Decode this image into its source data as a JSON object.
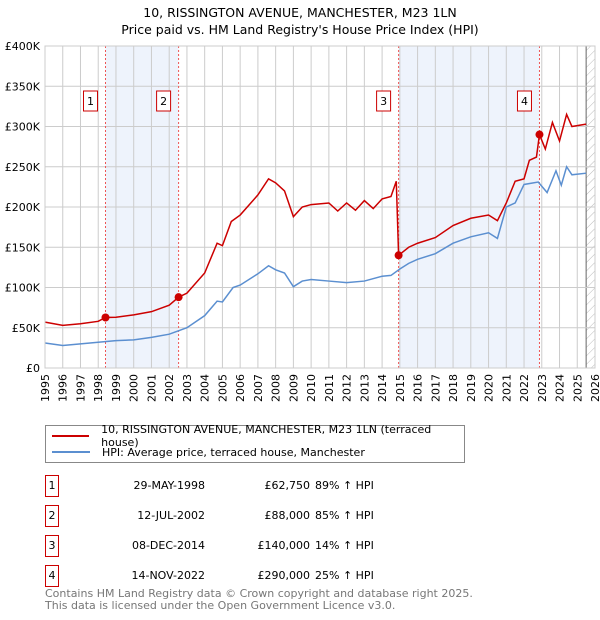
{
  "chart_data": {
    "type": "line",
    "title": "10, RISSINGTON AVENUE, MANCHESTER, M23 1LN",
    "subtitle": "Price paid vs. HM Land Registry's House Price Index (HPI)",
    "xlim": [
      1995,
      2026
    ],
    "ylim": [
      0,
      400000
    ],
    "y_ticks": [
      "£0",
      "£50K",
      "£100K",
      "£150K",
      "£200K",
      "£250K",
      "£300K",
      "£350K",
      "£400K"
    ],
    "x_ticks": [
      "1995",
      "1996",
      "1997",
      "1998",
      "1999",
      "2000",
      "2001",
      "2002",
      "2003",
      "2004",
      "2005",
      "2006",
      "2007",
      "2008",
      "2009",
      "2010",
      "2011",
      "2012",
      "2013",
      "2014",
      "2015",
      "2016",
      "2017",
      "2018",
      "2019",
      "2020",
      "2021",
      "2022",
      "2023",
      "2024",
      "2025",
      "2026"
    ],
    "colors": {
      "property": "#cc0000",
      "hpi": "#5b8fd0",
      "shade": "#eef3fc"
    },
    "series": [
      {
        "name": "10, RISSINGTON AVENUE, MANCHESTER, M23 1LN (terraced house)",
        "x": [
          1995,
          1996,
          1997,
          1998,
          1998.41,
          1999,
          2000,
          2001,
          2002,
          2002.53,
          2003,
          2004,
          2004.7,
          2005,
          2005.5,
          2006,
          2007,
          2007.6,
          2008,
          2008.5,
          2009,
          2009.5,
          2010,
          2011,
          2011.5,
          2012,
          2012.5,
          2013,
          2013.5,
          2014,
          2014.5,
          2014.8,
          2014.93,
          2015.5,
          2016,
          2017,
          2018,
          2019,
          2020,
          2020.5,
          2021,
          2021.5,
          2022,
          2022.3,
          2022.7,
          2022.87,
          2023.2,
          2023.6,
          2024,
          2024.4,
          2024.7,
          2025.5
        ],
        "values": [
          57000,
          53000,
          55000,
          58000,
          62750,
          63000,
          66000,
          70000,
          78000,
          88000,
          93000,
          118000,
          155000,
          152000,
          182000,
          190000,
          215000,
          235000,
          230000,
          220000,
          188000,
          200000,
          203000,
          205000,
          195000,
          205000,
          196000,
          208000,
          198000,
          210000,
          213000,
          232000,
          140000,
          150000,
          155000,
          162000,
          177000,
          186000,
          190000,
          183000,
          205000,
          232000,
          235000,
          258000,
          262000,
          290000,
          272000,
          305000,
          282000,
          315000,
          300000,
          303000
        ]
      },
      {
        "name": "HPI: Average price, terraced house, Manchester",
        "x": [
          1995,
          1996,
          1997,
          1998,
          1999,
          2000,
          2001,
          2002,
          2003,
          2004,
          2004.7,
          2005,
          2005.6,
          2006,
          2007,
          2007.6,
          2008,
          2008.5,
          2009,
          2009.5,
          2010,
          2011,
          2012,
          2013,
          2014,
          2014.5,
          2015,
          2015.5,
          2016,
          2017,
          2018,
          2019,
          2020,
          2020.5,
          2021,
          2021.5,
          2022,
          2022.8,
          2023.3,
          2023.8,
          2024.1,
          2024.4,
          2024.7,
          2025.5
        ],
        "values": [
          31000,
          28000,
          30000,
          32000,
          34000,
          35000,
          38000,
          42000,
          50000,
          65000,
          83000,
          82000,
          100000,
          103000,
          117000,
          127000,
          122000,
          118000,
          101000,
          108000,
          110000,
          108000,
          106000,
          108000,
          114000,
          115000,
          123000,
          130000,
          135000,
          142000,
          155000,
          163000,
          168000,
          161000,
          200000,
          205000,
          228000,
          231000,
          218000,
          245000,
          227000,
          250000,
          240000,
          242000
        ]
      }
    ],
    "sales": [
      {
        "n": "1",
        "x": 1998.41,
        "date": "29-MAY-1998",
        "price_value": 62750,
        "price": "£62,750",
        "hpi": "89% ↑ HPI"
      },
      {
        "n": "2",
        "x": 2002.53,
        "date": "12-JUL-2002",
        "price_value": 88000,
        "price": "£88,000",
        "hpi": "85% ↑ HPI"
      },
      {
        "n": "3",
        "x": 2014.93,
        "date": "08-DEC-2014",
        "price_value": 140000,
        "price": "£140,000",
        "hpi": "14% ↑ HPI"
      },
      {
        "n": "4",
        "x": 2022.87,
        "date": "14-NOV-2022",
        "price_value": 290000,
        "price": "£290,000",
        "hpi": "25% ↑ HPI"
      }
    ],
    "forecast_start": 2025.5,
    "legend": [
      "10, RISSINGTON AVENUE, MANCHESTER, M23 1LN (terraced house)",
      "HPI: Average price, terraced house, Manchester"
    ]
  },
  "footer": [
    "Contains HM Land Registry data © Crown copyright and database right 2025.",
    "This data is licensed under the Open Government Licence v3.0."
  ]
}
